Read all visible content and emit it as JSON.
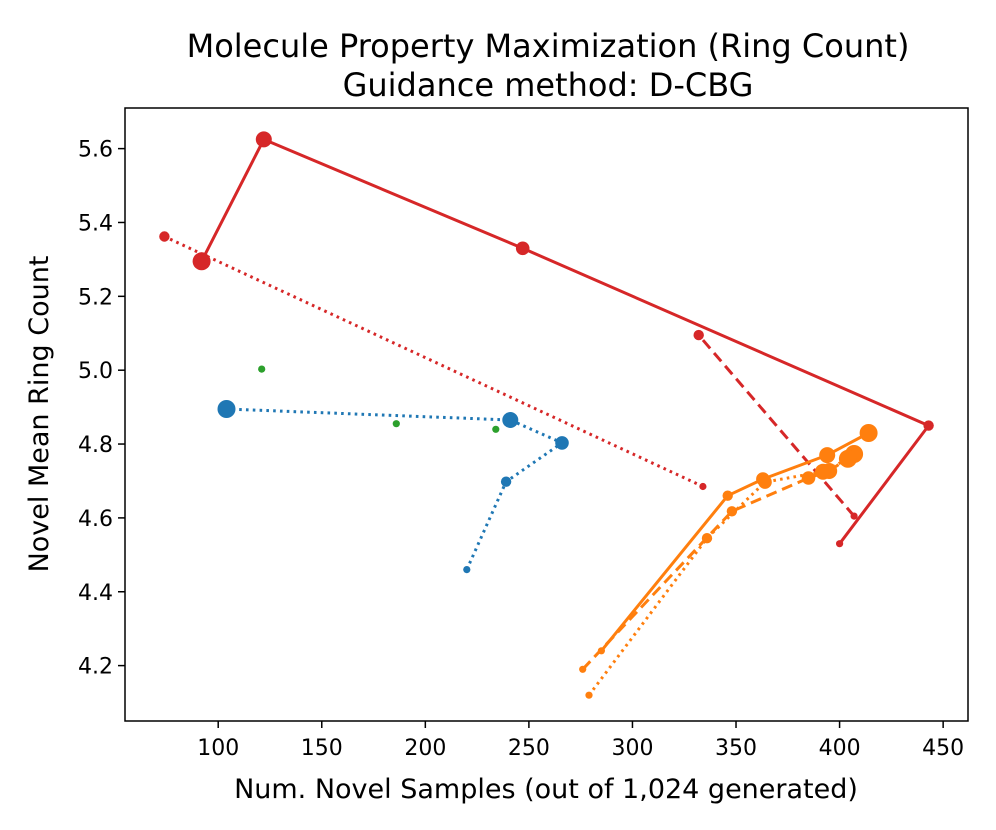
{
  "chart_data": {
    "type": "scatter",
    "title": "Molecule Property Maximization (Ring Count)",
    "subtitle": "Guidance method: D-CBG",
    "xlabel": "Num. Novel Samples (out of 1,024 generated)",
    "ylabel": "Novel Mean Ring Count",
    "xlim": [
      55,
      462
    ],
    "ylim": [
      4.05,
      5.71
    ],
    "xticks": [
      100,
      150,
      200,
      250,
      300,
      350,
      400,
      450
    ],
    "yticks": [
      4.2,
      4.4,
      4.6,
      4.8,
      5.0,
      5.2,
      5.4,
      5.6
    ],
    "grid": false,
    "series": [
      {
        "color": "#d62728",
        "linestyle": "solid",
        "points": [
          {
            "x": 400,
            "y": 4.53,
            "size": 1
          },
          {
            "x": 443,
            "y": 4.85,
            "size": 2
          },
          {
            "x": 247,
            "y": 5.33,
            "size": 3
          },
          {
            "x": 122,
            "y": 5.625,
            "size": 4
          },
          {
            "x": 92,
            "y": 5.295,
            "size": 5
          }
        ]
      },
      {
        "color": "#d62728",
        "linestyle": "dashed",
        "points": [
          {
            "x": 407,
            "y": 4.605,
            "size": 1
          },
          {
            "x": 332,
            "y": 5.095,
            "size": 2
          }
        ]
      },
      {
        "color": "#d62728",
        "linestyle": "dotted",
        "points": [
          {
            "x": 334,
            "y": 4.685,
            "size": 1
          },
          {
            "x": 74,
            "y": 5.362,
            "size": 2
          }
        ]
      },
      {
        "color": "#ff7f0e",
        "linestyle": "solid",
        "points": [
          {
            "x": 285,
            "y": 4.24,
            "size": 1
          },
          {
            "x": 346,
            "y": 4.66,
            "size": 2
          },
          {
            "x": 363,
            "y": 4.705,
            "size": 3
          },
          {
            "x": 394,
            "y": 4.77,
            "size": 4
          },
          {
            "x": 414,
            "y": 4.83,
            "size": 5
          }
        ]
      },
      {
        "color": "#ff7f0e",
        "linestyle": "dashed",
        "points": [
          {
            "x": 276,
            "y": 4.19,
            "size": 1
          },
          {
            "x": 348,
            "y": 4.618,
            "size": 2
          },
          {
            "x": 385,
            "y": 4.708,
            "size": 3
          },
          {
            "x": 395,
            "y": 4.727,
            "size": 4
          },
          {
            "x": 407,
            "y": 4.773,
            "size": 5
          }
        ]
      },
      {
        "color": "#ff7f0e",
        "linestyle": "dotted",
        "points": [
          {
            "x": 279,
            "y": 4.12,
            "size": 1
          },
          {
            "x": 336,
            "y": 4.545,
            "size": 2
          },
          {
            "x": 364,
            "y": 4.697,
            "size": 3
          },
          {
            "x": 392,
            "y": 4.725,
            "size": 4
          },
          {
            "x": 404,
            "y": 4.76,
            "size": 5
          }
        ]
      },
      {
        "color": "#1f77b4",
        "linestyle": "dotted",
        "points": [
          {
            "x": 220,
            "y": 4.46,
            "size": 1
          },
          {
            "x": 239,
            "y": 4.698,
            "size": 2
          },
          {
            "x": 266,
            "y": 4.803,
            "size": 3
          },
          {
            "x": 241,
            "y": 4.865,
            "size": 4
          },
          {
            "x": 104,
            "y": 4.895,
            "size": 5
          }
        ]
      },
      {
        "color": "#2ca02c",
        "linestyle": "none",
        "points": [
          {
            "x": 121,
            "y": 5.003,
            "size": 1
          },
          {
            "x": 186,
            "y": 4.855,
            "size": 1
          },
          {
            "x": 234,
            "y": 4.84,
            "size": 1
          }
        ]
      }
    ]
  }
}
